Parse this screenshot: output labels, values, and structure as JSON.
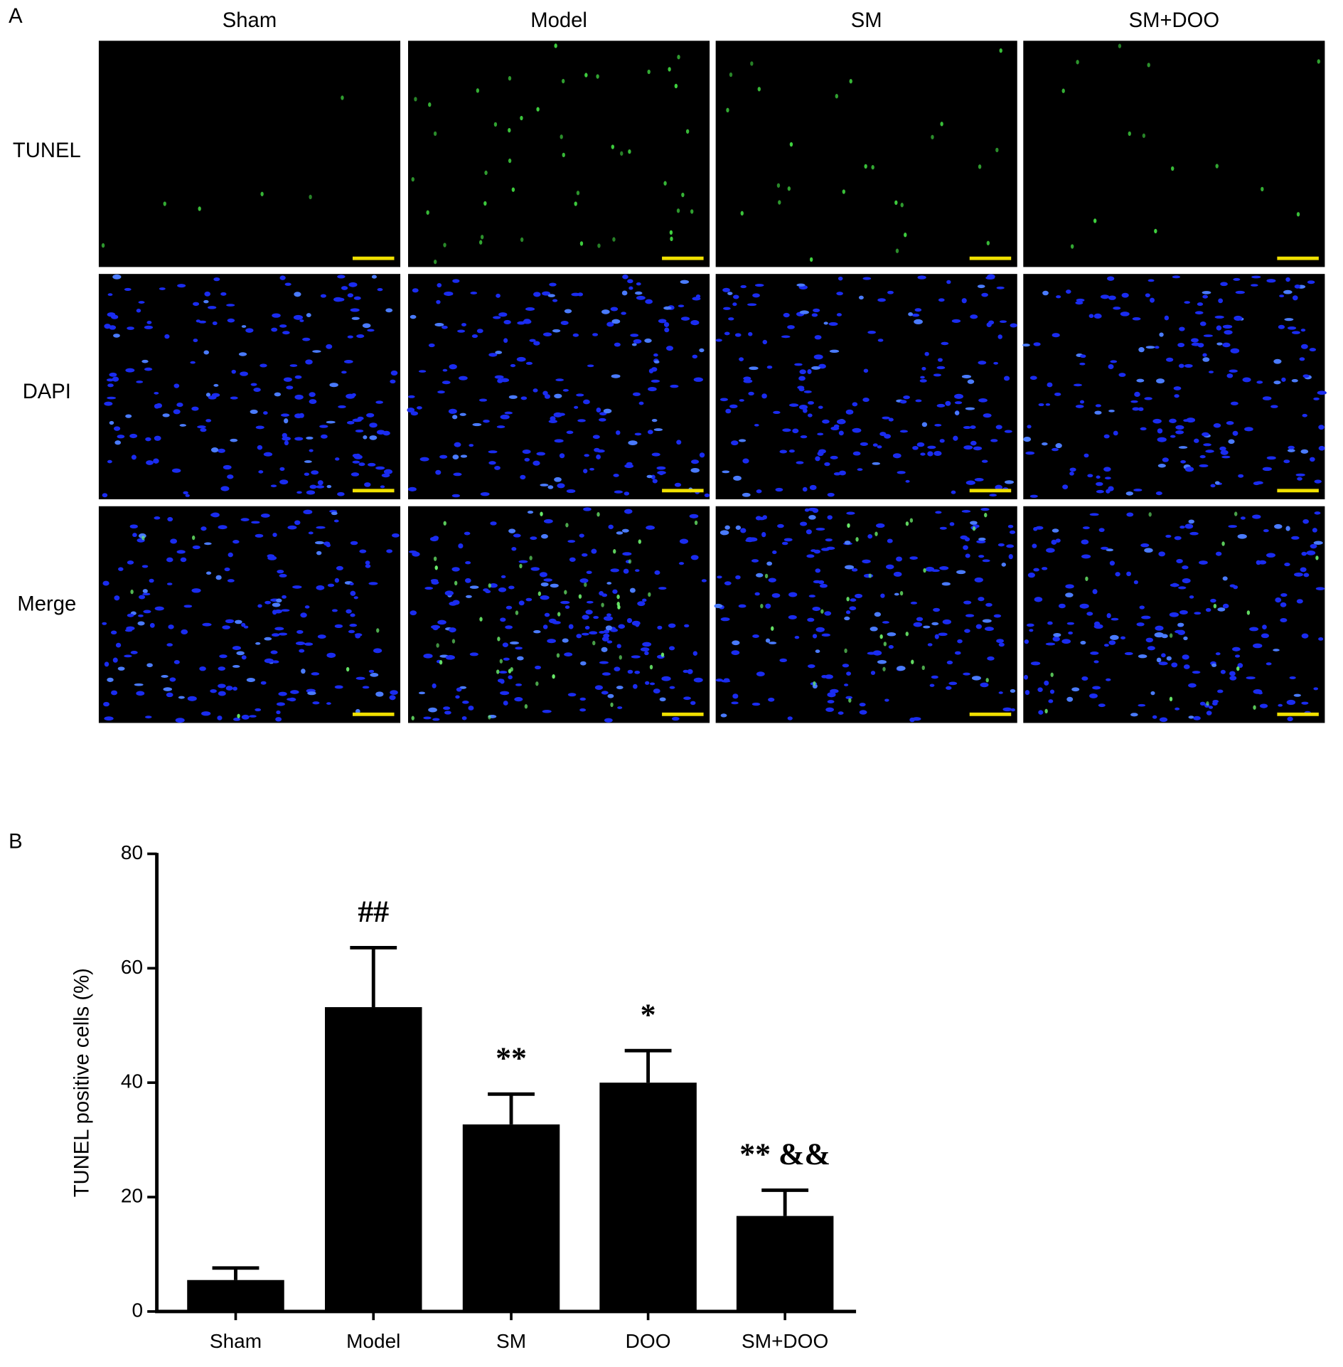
{
  "panels": {
    "a": "A",
    "b": "B"
  },
  "figure_a": {
    "columns": [
      "Sham",
      "Model",
      "SM",
      "SM+DOO"
    ],
    "rows": [
      "TUNEL",
      "DAPI",
      "Merge"
    ]
  },
  "chart_data": {
    "type": "bar",
    "ylabel": "TUNEL positive cells (%)",
    "categories": [
      "Sham",
      "Model",
      "SM",
      "DOO",
      "SM+DOO"
    ],
    "values": [
      5.5,
      53.2,
      32.7,
      40.0,
      16.7
    ],
    "errors": [
      2.1,
      10.4,
      5.3,
      5.6,
      4.5
    ],
    "annotations": [
      null,
      "##",
      "**",
      "*",
      "** &&"
    ],
    "color": "#000000",
    "ylim": [
      0,
      80
    ],
    "yticks": [
      0,
      20,
      40,
      60,
      80
    ]
  }
}
